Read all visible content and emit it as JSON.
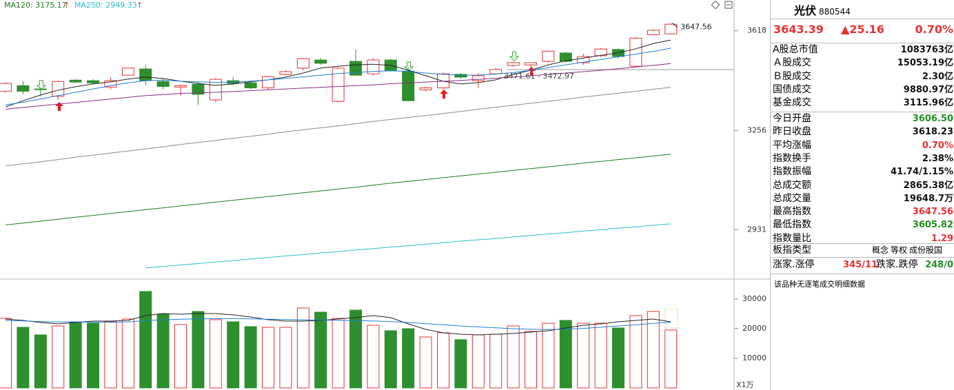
{
  "chart_data": [
    {
      "type": "candlestick",
      "log_scale": true,
      "ylim": [
        2782,
        3738
      ],
      "yticks": [
        3618,
        3256,
        2931
      ],
      "up_color": "#e8312f",
      "down_color": "#2e8f2e",
      "open": [
        3394,
        3414,
        3402,
        3376,
        3434,
        3432,
        3409,
        3452,
        3475,
        3429,
        3409,
        3419,
        3363,
        3432,
        3424,
        3406,
        3455,
        3478,
        3508,
        3358,
        3503,
        3457,
        3508,
        3467,
        3399,
        3406,
        3455,
        3432,
        3457,
        3488,
        3490,
        3503,
        3534,
        3498,
        3524,
        3547,
        3485,
        3603,
        3606.5
      ],
      "high": [
        3427,
        3432,
        3407,
        3432,
        3438,
        3437,
        3445,
        3480,
        3490,
        3437,
        3418,
        3427,
        3442,
        3445,
        3432,
        3450,
        3470,
        3516,
        3516,
        3482,
        3547,
        3516,
        3513,
        3480,
        3410,
        3462,
        3460,
        3460,
        3478,
        3503,
        3500,
        3544,
        3539,
        3531,
        3552,
        3552,
        3595,
        3625,
        3647.56
      ],
      "low": [
        3389,
        3383,
        3376,
        3363,
        3423,
        3419,
        3401,
        3450,
        3418,
        3401,
        3378,
        3345,
        3355,
        3416,
        3401,
        3398,
        3452,
        3470,
        3490,
        3355,
        3450,
        3450,
        3465,
        3358,
        3394,
        3401,
        3440,
        3406,
        3455,
        3483,
        3480,
        3498,
        3498,
        3490,
        3518,
        3513,
        3480,
        3600,
        3605.82
      ],
      "close": [
        3422,
        3394,
        3401,
        3429,
        3427,
        3424,
        3432,
        3478,
        3432,
        3411,
        3414,
        3383,
        3437,
        3422,
        3406,
        3447,
        3465,
        3513,
        3496,
        3478,
        3452,
        3508,
        3470,
        3360,
        3406,
        3457,
        3445,
        3450,
        3473,
        3498,
        3498,
        3541,
        3503,
        3521,
        3549,
        3521,
        3590,
        3620,
        3643.39
      ],
      "series": [
        {
          "color": "#222222",
          "values": [
            3338,
            3360,
            3380,
            3398,
            3410,
            3420,
            3428,
            3438,
            3445,
            3440,
            3430,
            3422,
            3415,
            3420,
            3428,
            3435,
            3445,
            3460,
            3478,
            3485,
            3490,
            3492,
            3488,
            3470,
            3450,
            3430,
            3420,
            3425,
            3435,
            3455,
            3470,
            3490,
            3505,
            3515,
            3525,
            3535,
            3550,
            3570,
            3583
          ]
        },
        {
          "color": "#1f7fd6",
          "values": [
            3345,
            3355,
            3366,
            3378,
            3390,
            3402,
            3414,
            3424,
            3432,
            3434,
            3430,
            3428,
            3426,
            3427,
            3430,
            3435,
            3440,
            3446,
            3452,
            3458,
            3462,
            3466,
            3468,
            3466,
            3460,
            3455,
            3452,
            3452,
            3456,
            3462,
            3470,
            3480,
            3490,
            3500,
            3510,
            3520,
            3530,
            3540,
            3552
          ]
        },
        {
          "color": "#8a2a8a",
          "values": [
            3330,
            3336,
            3342,
            3348,
            3354,
            3360,
            3366,
            3372,
            3378,
            3382,
            3386,
            3388,
            3390,
            3393,
            3396,
            3399,
            3402,
            3405,
            3408,
            3411,
            3414,
            3417,
            3421,
            3424,
            3427,
            3430,
            3433,
            3437,
            3441,
            3445,
            3450,
            3455,
            3460,
            3465,
            3470,
            3476,
            3482,
            3488,
            3495
          ]
        },
        {
          "color": "#8c8c8c",
          "values": [
            3136,
            3143,
            3150,
            3157,
            3165,
            3172,
            3179,
            3186,
            3193,
            3200,
            3208,
            3215,
            3222,
            3229,
            3236,
            3243,
            3251,
            3258,
            3265,
            3272,
            3279,
            3287,
            3294,
            3301,
            3308,
            3315,
            3322,
            3330,
            3337,
            3344,
            3351,
            3358,
            3365,
            3373,
            3380,
            3387,
            3394,
            3401,
            3408
          ]
        },
        {
          "name": "MA120: 3175.17",
          "color": "#1a7a1a",
          "values": [
            2946,
            2952,
            2958,
            2964,
            2970,
            2976,
            2982,
            2988,
            2994,
            3000,
            3006,
            3012,
            3018,
            3024,
            3030,
            3036,
            3042,
            3048,
            3054,
            3060,
            3066,
            3073,
            3079,
            3085,
            3091,
            3097,
            3103,
            3109,
            3115,
            3121,
            3127,
            3133,
            3139,
            3145,
            3151,
            3157,
            3163,
            3169,
            3175.17
          ]
        },
        {
          "name": "MA250: 2949.33",
          "color": "#22bfd0",
          "values": [
            null,
            null,
            null,
            null,
            null,
            null,
            null,
            null,
            2815,
            2819,
            2824,
            2828,
            2833,
            2837,
            2842,
            2846,
            2851,
            2855,
            2860,
            2864,
            2869,
            2873,
            2878,
            2882,
            2887,
            2891,
            2896,
            2900,
            2904,
            2909,
            2913,
            2918,
            2922,
            2927,
            2931,
            2936,
            2940,
            2945,
            2949.33
          ]
        }
      ],
      "annotations": [
        {
          "text": "3647.56"
        },
        {
          "text": "3471.61 - 3472.97"
        }
      ]
    },
    {
      "type": "bar",
      "ylim": [
        -700,
        36750
      ],
      "yticks": [
        10000,
        20000,
        30000
      ],
      "y_unit_label": "X1万",
      "up_color": "#e8312f",
      "down_color": "#2e8f2e",
      "values": [
        23488,
        20465,
        17907,
        20930,
        22326,
        21860,
        22326,
        23256,
        32558,
        24884,
        21395,
        25814,
        23023,
        22326,
        20698,
        20465,
        20465,
        26977,
        25581,
        23488,
        26279,
        21163,
        19302,
        20000,
        17209,
        18605,
        16279,
        17907,
        18140,
        20930,
        19070,
        21860,
        22791,
        21860,
        21860,
        20233,
        24419,
        25814,
        19535
      ],
      "series": [
        {
          "color": "#222222",
          "values": [
            23256,
            22791,
            22093,
            21628,
            22093,
            22558,
            22558,
            22791,
            24419,
            25116,
            24884,
            25116,
            25116,
            24651,
            23953,
            23023,
            22558,
            22558,
            22791,
            23256,
            23721,
            24419,
            23721,
            21628,
            19767,
            18605,
            18140,
            17907,
            18140,
            18372,
            18837,
            19302,
            20233,
            21163,
            21628,
            22326,
            22791,
            23256,
            22326
          ]
        },
        {
          "color": "#1f7fd6",
          "values": [
            22800,
            22600,
            22400,
            22300,
            22300,
            22200,
            22200,
            22300,
            22700,
            23000,
            23200,
            23300,
            23400,
            23400,
            23300,
            23200,
            23100,
            23000,
            22900,
            22800,
            22700,
            22600,
            22400,
            22100,
            21700,
            21300,
            20900,
            20600,
            20300,
            20000,
            19800,
            19700,
            19800,
            20100,
            20500,
            20900,
            21300,
            21800,
            22200
          ]
        }
      ]
    }
  ],
  "panel": {
    "name": "光伏",
    "code": "880544",
    "price": "3643.39",
    "change": "▲25.16",
    "pct": "0.70%",
    "quote_color": "#e8312f",
    "groups": [
      [
        {
          "label": "A股总市值",
          "value": "1083763亿",
          "color": "#111111"
        },
        {
          "label": "Ａ股成交",
          "value": "15053.19亿",
          "color": "#111111"
        },
        {
          "label": "Ｂ股成交",
          "value": "2.30亿",
          "color": "#111111"
        },
        {
          "label": "国债成交",
          "value": "9880.97亿",
          "color": "#111111"
        },
        {
          "label": "基金成交",
          "value": "3115.96亿",
          "color": "#111111"
        }
      ],
      [
        {
          "label": "今日开盘",
          "value": "3606.50",
          "color": "#1f8f1f"
        },
        {
          "label": "昨日收盘",
          "value": "3618.23",
          "color": "#111111"
        },
        {
          "label": "平均涨幅",
          "value": "0.70%",
          "color": "#e8312f"
        },
        {
          "label": "指数换手",
          "value": "2.38%",
          "color": "#111111"
        },
        {
          "label": "指数振幅",
          "value": "41.74/1.15%",
          "color": "#111111"
        },
        {
          "label": "总成交额",
          "value": "2865.38亿",
          "color": "#111111"
        },
        {
          "label": "总成交量",
          "value": "19648.7万",
          "color": "#111111"
        },
        {
          "label": "最高指数",
          "value": "3647.56",
          "color": "#e8312f"
        },
        {
          "label": "最低指数",
          "value": "3605.82",
          "color": "#1f8f1f"
        },
        {
          "label": "指数量比",
          "value": "1.29",
          "color": "#e8312f"
        }
      ]
    ],
    "index_type": {
      "label": "板指类型",
      "options": [
        "概念",
        "等权",
        "成份股国"
      ]
    },
    "breadth": {
      "up_label": "涨家.涨停",
      "up_value": "345/11",
      "down_label": "跌家.跌停",
      "down_value": "248/0"
    },
    "note": "该品种无逐笔成交明细数据"
  }
}
